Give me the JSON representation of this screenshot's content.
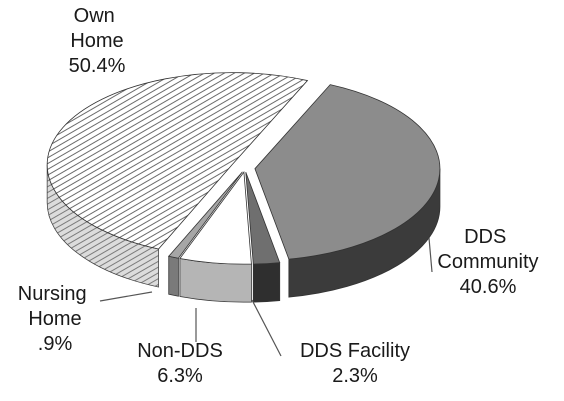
{
  "chart_data": {
    "type": "pie",
    "categories": [
      "DDS Community",
      "DDS Facility",
      "Non-DDS",
      "Nursing Home",
      "Own Home"
    ],
    "values": [
      40.6,
      2.3,
      6.3,
      0.9,
      50.4
    ],
    "value_labels": [
      "40.6%",
      "2.3%",
      "6.3%",
      ".9%",
      "50.4%"
    ],
    "colors": [
      "#8c8c8c",
      "#6f6f6f",
      "#ffffff",
      "#a6a6a6",
      "#ffffff"
    ],
    "side_colors": [
      "#3b3b3b",
      "#2f2f2f",
      "#b5b5b5",
      "#7a7a7a",
      "#9a9a9a"
    ],
    "patterns": [
      null,
      null,
      null,
      null,
      "hatch"
    ],
    "three_d": true
  }
}
